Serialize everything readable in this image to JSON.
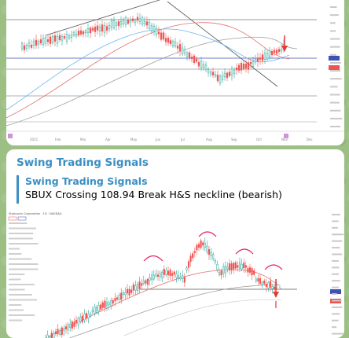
{
  "colors": {
    "background": "#9cbf84",
    "accent": "#3a8fc4",
    "bull_candle": "#26a69a",
    "bear_candle": "#ef5350",
    "pattern_arc": "#e91e63",
    "signal_arrow": "#e53935"
  },
  "chart_top": {
    "x_axis_labels": [
      "2021",
      "Feb",
      "Mar",
      "Apr",
      "May",
      "Jun",
      "Jul",
      "Aug",
      "Sep",
      "Oct",
      "Nov",
      "Dec"
    ]
  },
  "message": {
    "sender": "Swing Trading Signals",
    "reply_title": "Swing Trading Signals",
    "reply_text": "SBUX Crossing 108.94 Break H&S neckline (bearish)"
  },
  "chart_bottom": {
    "symbol_header": "Starbucks Corporation · 1D · NASDAQ"
  }
}
